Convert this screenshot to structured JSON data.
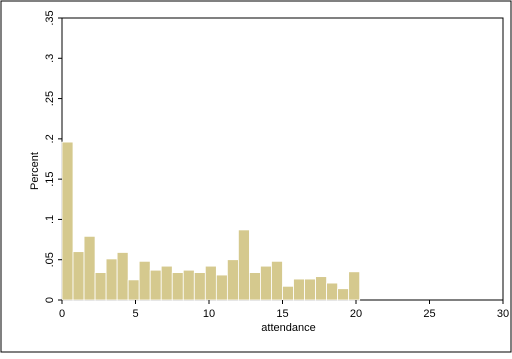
{
  "chart_data": {
    "type": "bar",
    "xlabel": "attendance",
    "ylabel": "Percent",
    "xlim": [
      0,
      30
    ],
    "ylim": [
      0,
      0.35
    ],
    "bin_width": 0.75,
    "x_ticks": [
      0,
      5,
      10,
      15,
      20,
      25,
      30
    ],
    "x_tick_labels": [
      "0",
      "5",
      "10",
      "15",
      "20",
      "25",
      "30"
    ],
    "y_ticks": [
      0,
      0.05,
      0.1,
      0.15,
      0.2,
      0.25,
      0.3,
      0.35
    ],
    "y_tick_labels": [
      "0",
      ".05",
      ".1",
      ".15",
      ".2",
      ".25",
      ".3",
      ".35"
    ],
    "bins": [
      {
        "x": 0.0,
        "value": 0.196
      },
      {
        "x": 0.75,
        "value": 0.06
      },
      {
        "x": 1.5,
        "value": 0.079
      },
      {
        "x": 2.25,
        "value": 0.034
      },
      {
        "x": 3.0,
        "value": 0.051
      },
      {
        "x": 3.75,
        "value": 0.059
      },
      {
        "x": 4.5,
        "value": 0.025
      },
      {
        "x": 5.25,
        "value": 0.048
      },
      {
        "x": 6.0,
        "value": 0.037
      },
      {
        "x": 6.75,
        "value": 0.042
      },
      {
        "x": 7.5,
        "value": 0.034
      },
      {
        "x": 8.25,
        "value": 0.037
      },
      {
        "x": 9.0,
        "value": 0.034
      },
      {
        "x": 9.75,
        "value": 0.042
      },
      {
        "x": 10.5,
        "value": 0.031
      },
      {
        "x": 11.25,
        "value": 0.05
      },
      {
        "x": 12.0,
        "value": 0.087
      },
      {
        "x": 12.75,
        "value": 0.034
      },
      {
        "x": 13.5,
        "value": 0.042
      },
      {
        "x": 14.25,
        "value": 0.048
      },
      {
        "x": 15.0,
        "value": 0.017
      },
      {
        "x": 15.75,
        "value": 0.026
      },
      {
        "x": 16.5,
        "value": 0.026
      },
      {
        "x": 17.25,
        "value": 0.029
      },
      {
        "x": 18.0,
        "value": 0.021
      },
      {
        "x": 18.75,
        "value": 0.014
      },
      {
        "x": 19.5,
        "value": 0.035
      }
    ],
    "bar_color": "#d5c98e",
    "bar_edge_color": "#ffffff",
    "grid": false
  }
}
